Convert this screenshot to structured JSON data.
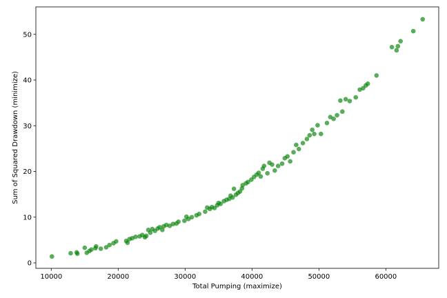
{
  "chart_data": {
    "type": "scatter",
    "title": "",
    "xlabel": "Total Pumping (maximize)",
    "ylabel": "Sum of Squared Drawdown (minimize)",
    "xlim": [
      7700,
      67900
    ],
    "ylim": [
      -1.2,
      56
    ],
    "xticks": [
      10000,
      20000,
      30000,
      40000,
      50000,
      60000
    ],
    "yticks": [
      0,
      10,
      20,
      30,
      40,
      50
    ],
    "xtick_labels": [
      "10000",
      "20000",
      "30000",
      "40000",
      "50000",
      "60000"
    ],
    "ytick_labels": [
      "0",
      "10",
      "20",
      "30",
      "40",
      "50"
    ],
    "grid": false,
    "legend": "none",
    "marker_color": "#008000",
    "series": [
      {
        "points": [
          [
            10100,
            1.4
          ],
          [
            12900,
            2.1
          ],
          [
            13800,
            2.3
          ],
          [
            13900,
            2.0
          ],
          [
            15000,
            3.3
          ],
          [
            15300,
            2.2
          ],
          [
            15700,
            2.6
          ],
          [
            16000,
            2.9
          ],
          [
            16600,
            3.2
          ],
          [
            16700,
            3.6
          ],
          [
            17400,
            3.1
          ],
          [
            18200,
            3.4
          ],
          [
            18700,
            3.9
          ],
          [
            19300,
            4.3
          ],
          [
            19700,
            4.7
          ],
          [
            21200,
            4.8
          ],
          [
            21400,
            4.4
          ],
          [
            21700,
            5.2
          ],
          [
            22100,
            5.4
          ],
          [
            22600,
            5.7
          ],
          [
            23200,
            5.8
          ],
          [
            23600,
            6.1
          ],
          [
            24000,
            5.6
          ],
          [
            24200,
            5.9
          ],
          [
            24500,
            7.2
          ],
          [
            24800,
            6.6
          ],
          [
            25100,
            7.4
          ],
          [
            25500,
            7.0
          ],
          [
            25900,
            7.5
          ],
          [
            26200,
            7.8
          ],
          [
            26600,
            7.2
          ],
          [
            26800,
            8.0
          ],
          [
            27200,
            8.3
          ],
          [
            27700,
            8.1
          ],
          [
            28200,
            8.5
          ],
          [
            28700,
            8.6
          ],
          [
            29000,
            9.0
          ],
          [
            29900,
            9.2
          ],
          [
            30200,
            10.1
          ],
          [
            30500,
            9.6
          ],
          [
            31000,
            10.0
          ],
          [
            31700,
            10.4
          ],
          [
            32100,
            10.7
          ],
          [
            33000,
            11.2
          ],
          [
            33300,
            12.1
          ],
          [
            33700,
            11.8
          ],
          [
            34000,
            12.2
          ],
          [
            34400,
            12.0
          ],
          [
            34800,
            12.6
          ],
          [
            35000,
            13.1
          ],
          [
            35300,
            12.9
          ],
          [
            35800,
            13.5
          ],
          [
            36200,
            13.8
          ],
          [
            36600,
            14.0
          ],
          [
            36800,
            14.7
          ],
          [
            37100,
            14.3
          ],
          [
            37300,
            16.2
          ],
          [
            37600,
            14.9
          ],
          [
            37900,
            15.3
          ],
          [
            38200,
            15.6
          ],
          [
            38500,
            16.3
          ],
          [
            38600,
            17.0
          ],
          [
            39100,
            17.4
          ],
          [
            39400,
            17.7
          ],
          [
            39900,
            18.2
          ],
          [
            40300,
            18.8
          ],
          [
            40700,
            19.3
          ],
          [
            41000,
            19.7
          ],
          [
            41300,
            18.9
          ],
          [
            41600,
            20.6
          ],
          [
            41800,
            21.2
          ],
          [
            42300,
            19.6
          ],
          [
            42600,
            21.9
          ],
          [
            43000,
            21.5
          ],
          [
            43400,
            20.2
          ],
          [
            43900,
            21.2
          ],
          [
            44500,
            21.7
          ],
          [
            44900,
            22.9
          ],
          [
            45300,
            23.3
          ],
          [
            45700,
            22.2
          ],
          [
            46200,
            24.2
          ],
          [
            46600,
            25.8
          ],
          [
            47000,
            24.9
          ],
          [
            47600,
            26.2
          ],
          [
            48200,
            27.1
          ],
          [
            48600,
            27.9
          ],
          [
            49000,
            29.1
          ],
          [
            49300,
            28.2
          ],
          [
            49800,
            30.1
          ],
          [
            50300,
            28.2
          ],
          [
            51200,
            30.6
          ],
          [
            51700,
            31.9
          ],
          [
            52200,
            31.5
          ],
          [
            52700,
            32.3
          ],
          [
            53200,
            35.5
          ],
          [
            53500,
            33.1
          ],
          [
            54000,
            35.8
          ],
          [
            54600,
            35.4
          ],
          [
            55500,
            36.2
          ],
          [
            56100,
            37.9
          ],
          [
            56600,
            38.2
          ],
          [
            57000,
            38.8
          ],
          [
            57300,
            39.2
          ],
          [
            58600,
            41.0
          ],
          [
            60900,
            47.2
          ],
          [
            61600,
            46.5
          ],
          [
            61800,
            47.4
          ],
          [
            62200,
            48.5
          ],
          [
            64100,
            50.7
          ],
          [
            65500,
            53.3
          ]
        ]
      }
    ]
  }
}
